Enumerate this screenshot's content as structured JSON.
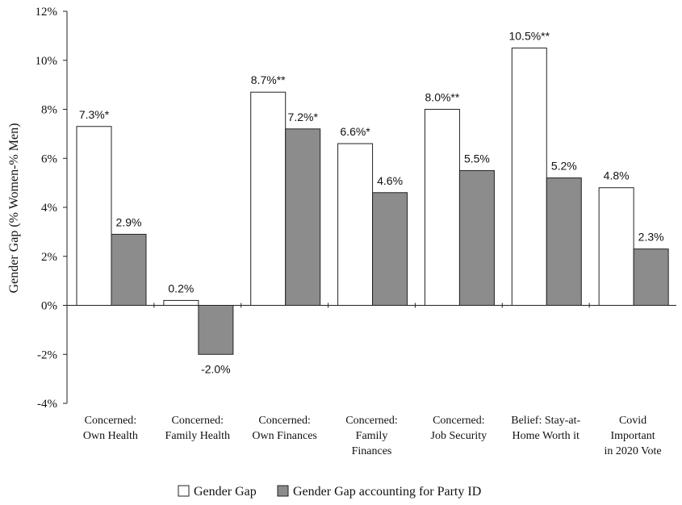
{
  "chart_data": {
    "type": "bar",
    "ylabel": "Gender Gap (% Women-% Men)",
    "xlabel": "",
    "ylim": [
      -4,
      12
    ],
    "ytick_values": [
      -4,
      -2,
      0,
      2,
      4,
      6,
      8,
      10,
      12
    ],
    "ytick_labels": [
      "-4%",
      "-2%",
      "0%",
      "2%",
      "4%",
      "6%",
      "8%",
      "10%",
      "12%"
    ],
    "grid": false,
    "legend_position": "bottom",
    "categories": [
      [
        "Concerned:",
        "Own Health"
      ],
      [
        "Concerned:",
        "Family Health"
      ],
      [
        "Concerned:",
        "Own Finances"
      ],
      [
        "Concerned:",
        "Family",
        "Finances"
      ],
      [
        "Concerned:",
        "Job Security"
      ],
      [
        "Belief: Stay-at-",
        "Home Worth it"
      ],
      [
        "Covid",
        "Important",
        "in 2020 Vote"
      ]
    ],
    "series": [
      {
        "name": "Gender Gap",
        "color": "#ffffff",
        "values": [
          7.3,
          0.2,
          8.7,
          6.6,
          8.0,
          10.5,
          4.8
        ],
        "labels": [
          "7.3%*",
          "0.2%",
          "8.7%**",
          "6.6%*",
          "8.0%**",
          "10.5%**",
          "4.8%"
        ]
      },
      {
        "name": "Gender Gap accounting for Party ID",
        "color": "#8c8c8c",
        "values": [
          2.9,
          -2.0,
          7.2,
          4.6,
          5.5,
          5.2,
          2.3
        ],
        "labels": [
          "2.9%",
          "-2.0%",
          "7.2%*",
          "4.6%",
          "5.5%",
          "5.2%",
          "2.3%"
        ]
      }
    ]
  }
}
